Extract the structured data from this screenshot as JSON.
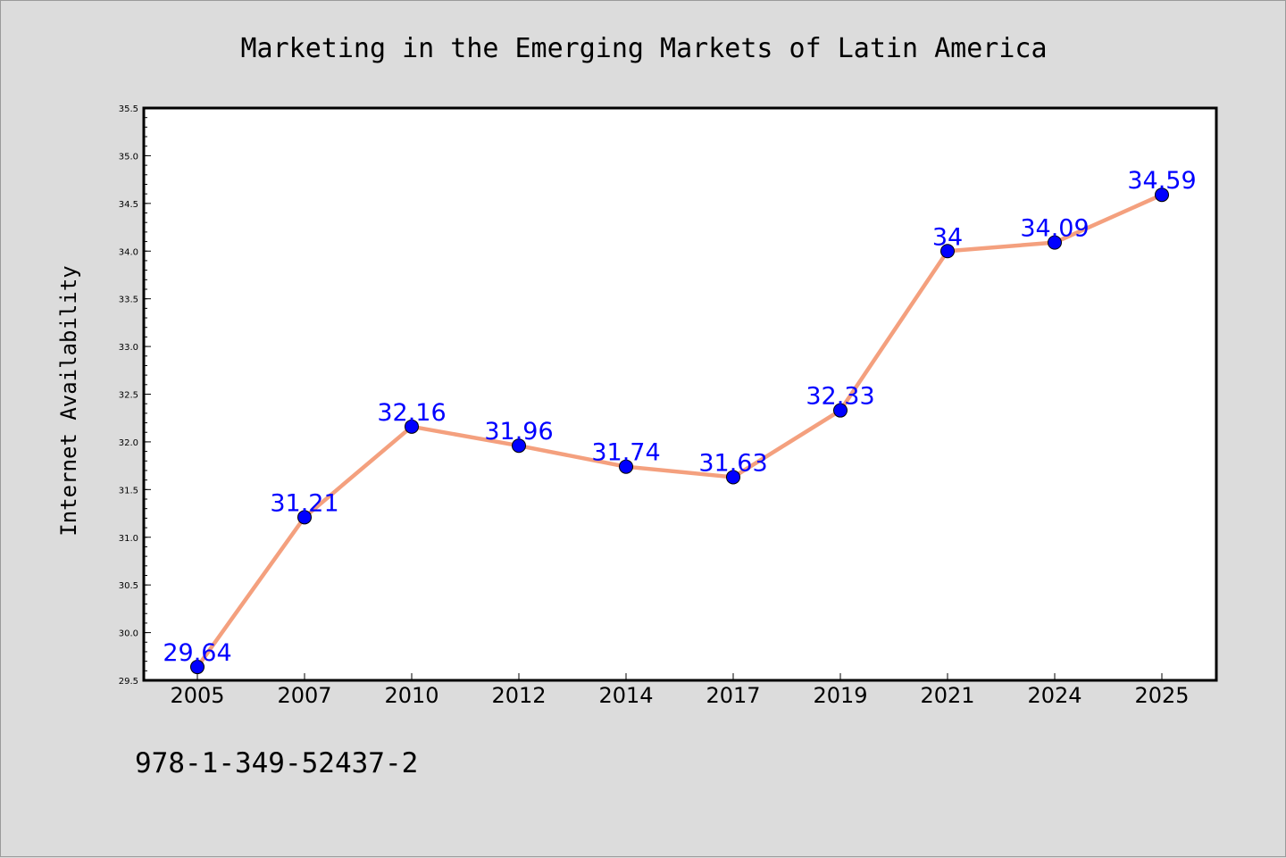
{
  "chart_data": {
    "type": "line",
    "title": "Marketing in the Emerging Markets of Latin America",
    "xlabel": "",
    "ylabel": "Internet Availability",
    "categories": [
      "2005",
      "2007",
      "2010",
      "2012",
      "2014",
      "2017",
      "2019",
      "2021",
      "2024",
      "2025"
    ],
    "values": [
      29.64,
      31.21,
      32.16,
      31.96,
      31.74,
      31.63,
      32.33,
      34,
      34.09,
      34.59
    ],
    "data_labels": [
      "29.64",
      "31.21",
      "32.16",
      "31.96",
      "31.74",
      "31.63",
      "32.33",
      "34",
      "34.09",
      "34.59"
    ],
    "ylim": [
      29.5,
      35.5
    ],
    "yticks": [
      "29.5",
      "30.0",
      "30.5",
      "31.0",
      "31.5",
      "32.0",
      "32.5",
      "33.0",
      "33.5",
      "34.0",
      "34.5",
      "35.0",
      "35.5"
    ],
    "grid": false,
    "legend": "none",
    "line_color": "#f4a07e",
    "marker_color": "#0000ff",
    "label_color": "#0000ff"
  },
  "footer_text": "978-1-349-52437-2"
}
